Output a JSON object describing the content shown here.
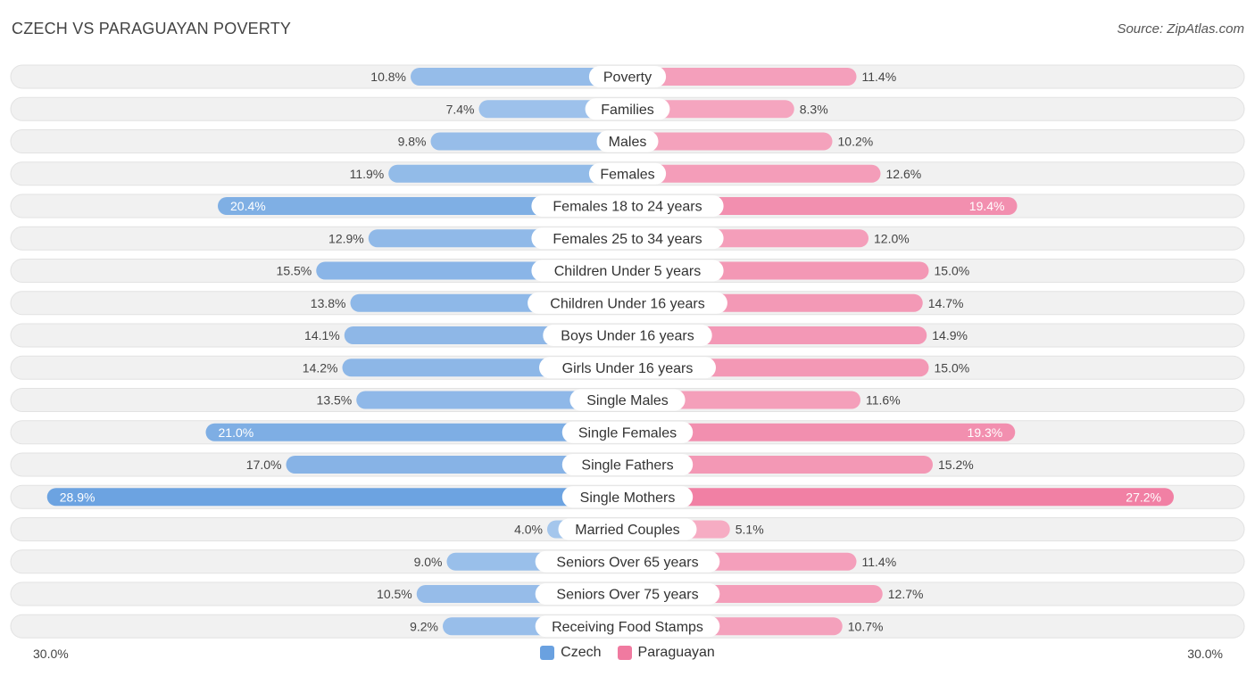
{
  "chart_data": {
    "type": "bar",
    "orientation": "horizontal-diverging",
    "title": "CZECH VS PARAGUAYAN POVERTY",
    "source": "Source: ZipAtlas.com",
    "axis_min_label": "30.0%",
    "axis_max_label": "30.0%",
    "max_value": 30.0,
    "categories": [
      "Poverty",
      "Families",
      "Males",
      "Females",
      "Females 18 to 24 years",
      "Females 25 to 34 years",
      "Children Under 5 years",
      "Children Under 16 years",
      "Boys Under 16 years",
      "Girls Under 16 years",
      "Single Males",
      "Single Females",
      "Single Fathers",
      "Single Mothers",
      "Married Couples",
      "Seniors Over 65 years",
      "Seniors Over 75 years",
      "Receiving Food Stamps"
    ],
    "series": [
      {
        "name": "Czech",
        "color": "#6aa1e0",
        "values": [
          10.8,
          7.4,
          9.8,
          11.9,
          20.4,
          12.9,
          15.5,
          13.8,
          14.1,
          14.2,
          13.5,
          21.0,
          17.0,
          28.9,
          4.0,
          9.0,
          10.5,
          9.2
        ],
        "labels": [
          "10.8%",
          "7.4%",
          "9.8%",
          "11.9%",
          "20.4%",
          "12.9%",
          "15.5%",
          "13.8%",
          "14.1%",
          "14.2%",
          "13.5%",
          "21.0%",
          "17.0%",
          "28.9%",
          "4.0%",
          "9.0%",
          "10.5%",
          "9.2%"
        ]
      },
      {
        "name": "Paraguayan",
        "color": "#f07aa0",
        "values": [
          11.4,
          8.3,
          10.2,
          12.6,
          19.4,
          12.0,
          15.0,
          14.7,
          14.9,
          15.0,
          11.6,
          19.3,
          15.2,
          27.2,
          5.1,
          11.4,
          12.7,
          10.7
        ],
        "labels": [
          "11.4%",
          "8.3%",
          "10.2%",
          "12.6%",
          "19.4%",
          "12.0%",
          "15.0%",
          "14.7%",
          "14.9%",
          "15.0%",
          "11.6%",
          "19.3%",
          "15.2%",
          "27.2%",
          "5.1%",
          "11.4%",
          "12.7%",
          "10.7%"
        ]
      }
    ],
    "legend": [
      "Czech",
      "Paraguayan"
    ],
    "legend_position": "bottom-center"
  }
}
